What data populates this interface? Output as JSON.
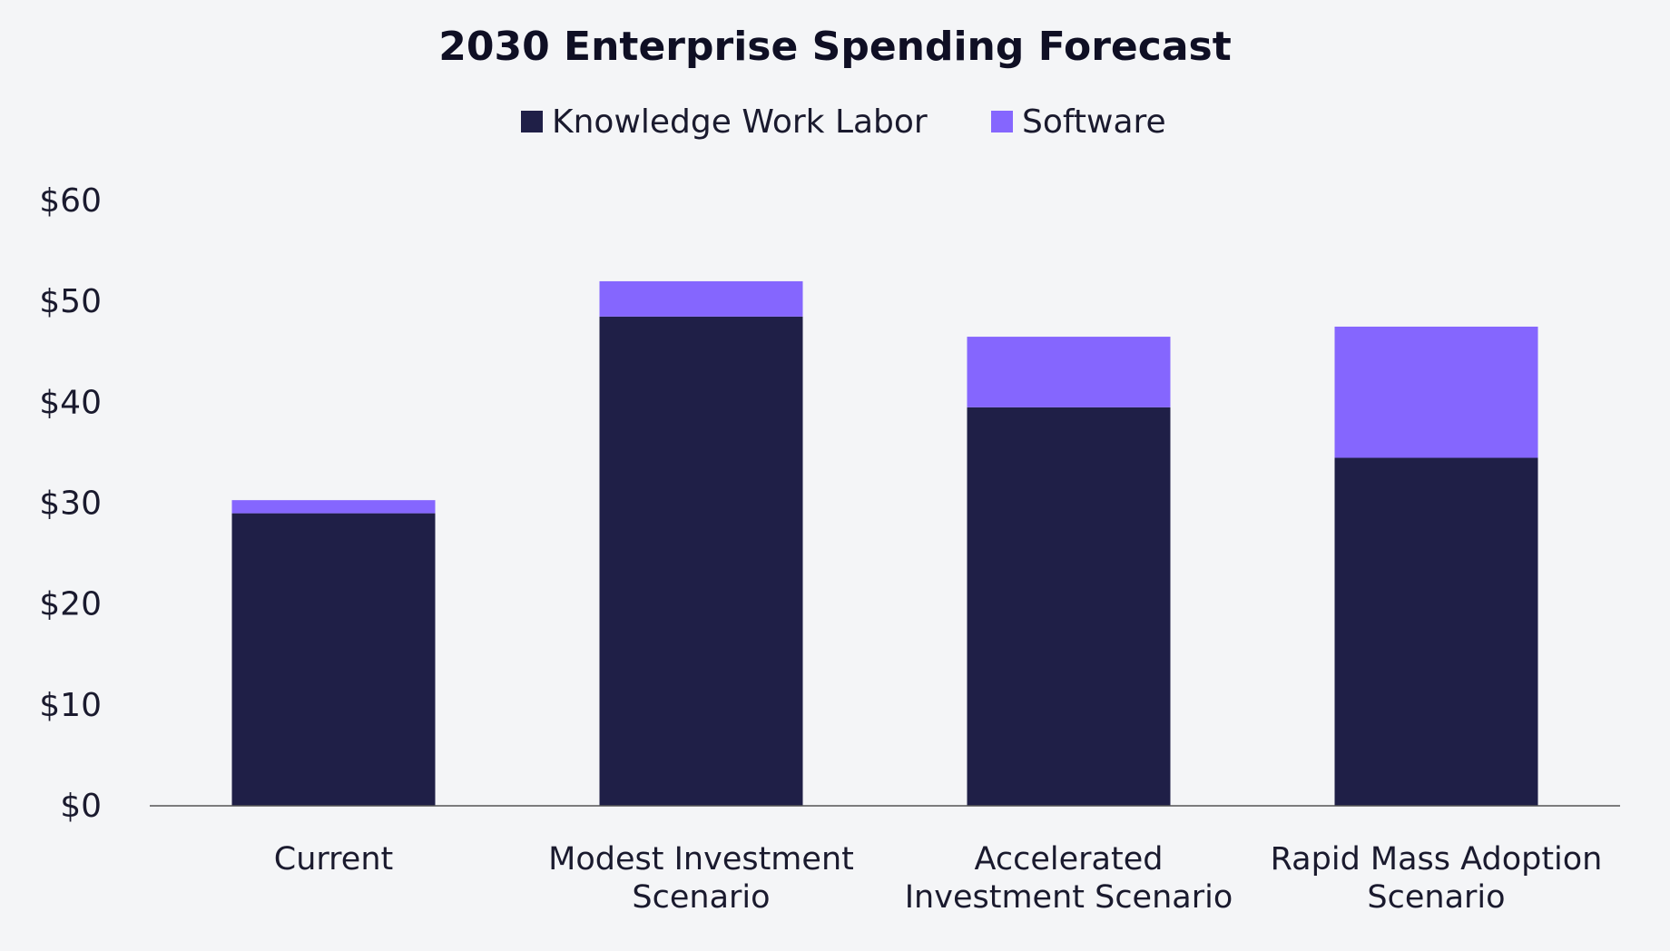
{
  "chart_data": {
    "type": "bar",
    "stacked": true,
    "title": "2030 Enterprise Spending Forecast",
    "xlabel": "",
    "ylabel": "",
    "ylim": [
      0,
      60
    ],
    "yticks": [
      0,
      10,
      20,
      30,
      40,
      50,
      60
    ],
    "ytick_labels": [
      "$0",
      "$10",
      "$20",
      "$30",
      "$40",
      "$50",
      "$60"
    ],
    "grid": false,
    "legend_position": "top-center",
    "categories": [
      [
        "Current"
      ],
      [
        "Modest Investment",
        "Scenario"
      ],
      [
        "Accelerated",
        "Investment Scenario"
      ],
      [
        "Rapid Mass Adoption",
        "Scenario"
      ]
    ],
    "series": [
      {
        "name": "Knowledge Work Labor",
        "color": "#1f1f47",
        "values": [
          29.0,
          48.5,
          39.5,
          34.5
        ]
      },
      {
        "name": "Software",
        "color": "#8566fe",
        "values": [
          1.3,
          3.5,
          7.0,
          13.0
        ]
      }
    ],
    "colors": {
      "background": "#f4f5f7",
      "axis": "#555555"
    }
  }
}
